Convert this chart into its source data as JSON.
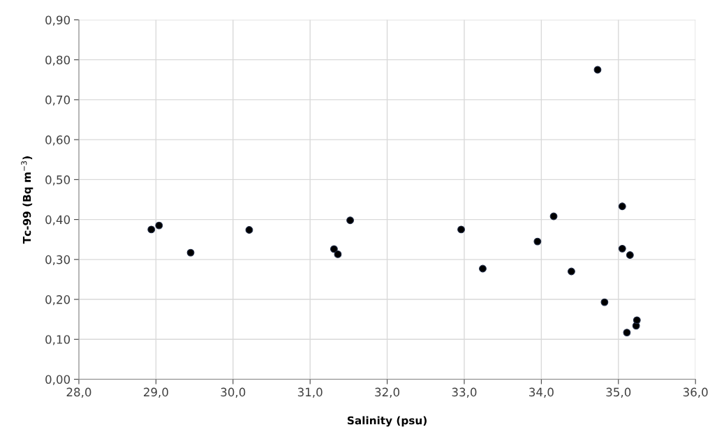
{
  "chart_data": {
    "type": "scatter",
    "xlabel": "Salinity (psu)",
    "ylabel": "Tc-99 (Bq m$^{−3}$)",
    "x": [
      28.94,
      29.04,
      29.45,
      30.21,
      31.31,
      31.36,
      31.52,
      32.96,
      33.24,
      33.95,
      34.16,
      34.39,
      34.73,
      34.82,
      35.05,
      35.05,
      35.15,
      35.11,
      35.23,
      35.24
    ],
    "series": [
      {
        "color": "#000000",
        "values": [
          0.375,
          0.385,
          0.317,
          0.374,
          0.326,
          0.313,
          0.398,
          0.375,
          0.277,
          0.345,
          0.408,
          0.27,
          0.775,
          0.193,
          0.433,
          0.327,
          0.311,
          0.117,
          0.134,
          0.148
        ]
      }
    ],
    "xlim": [
      28,
      36
    ],
    "ylim": [
      0,
      0.9
    ],
    "xticks": [
      {
        "value": 28,
        "label": "28,0"
      },
      {
        "value": 29,
        "label": "29,0"
      },
      {
        "value": 30,
        "label": "30,0"
      },
      {
        "value": 31,
        "label": "31,0"
      },
      {
        "value": 32,
        "label": "32,0"
      },
      {
        "value": 33,
        "label": "33,0"
      },
      {
        "value": 34,
        "label": "34,0"
      },
      {
        "value": 35,
        "label": "35,0"
      },
      {
        "value": 36,
        "label": "36,0"
      }
    ],
    "yticks": [
      {
        "value": 0,
        "label": "0,00"
      },
      {
        "value": 0.1,
        "label": "0,10"
      },
      {
        "value": 0.2,
        "label": "0,20"
      },
      {
        "value": 0.3,
        "label": "0,30"
      },
      {
        "value": 0.4,
        "label": "0,40"
      },
      {
        "value": 0.5,
        "label": "0,50"
      },
      {
        "value": 0.6,
        "label": "0,60"
      },
      {
        "value": 0.7,
        "label": "0,70"
      },
      {
        "value": 0.8,
        "label": "0,80"
      },
      {
        "value": 0.9,
        "label": "0,90"
      }
    ],
    "grid": true,
    "marker": "circle"
  }
}
